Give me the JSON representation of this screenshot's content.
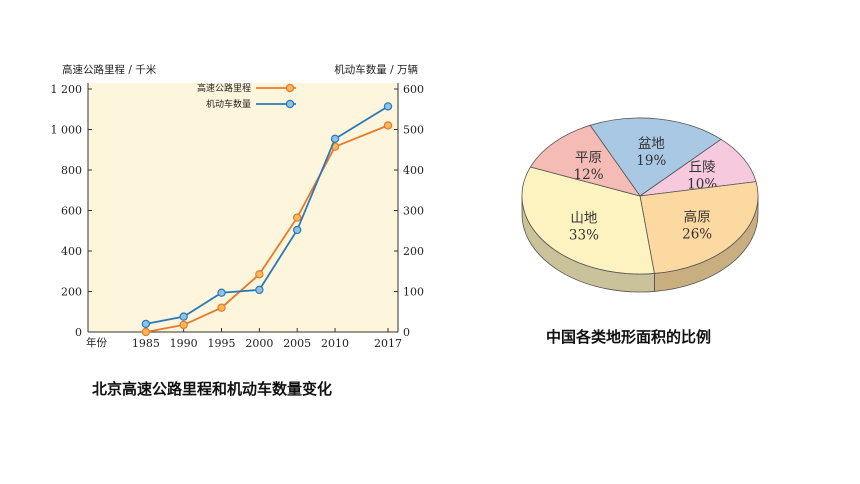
{
  "chart_data": [
    {
      "type": "line",
      "title": "北京高速公路里程和机动车数量变化",
      "xlabel": "年份",
      "ylabel_left": "高速公路里程 / 千米",
      "ylabel_right": "机动车数量 / 万辆",
      "x": [
        "1985",
        "1990",
        "1995",
        "2000",
        "2005",
        "2010",
        "2017"
      ],
      "ylim_left": [
        0,
        1200
      ],
      "yticks_left": [
        "0",
        "200",
        "400",
        "600",
        "800",
        "1 000",
        "1 200"
      ],
      "ylim_right": [
        0,
        600
      ],
      "yticks_right": [
        "0",
        "100",
        "200",
        "300",
        "400",
        "500",
        "600"
      ],
      "legend_position": "top-right",
      "background": "#fdf6dc",
      "series": [
        {
          "name": "高速公路里程",
          "axis": "left",
          "color": "#e8792b",
          "marker_color": "#f5b95a",
          "values": [
            0,
            35,
            120,
            285,
            565,
            915,
            1020
          ]
        },
        {
          "name": "机动车数量",
          "axis": "right",
          "color": "#2e78b7",
          "marker_color": "#8ec3e6",
          "values": [
            20,
            38,
            97,
            104,
            252,
            477,
            557
          ]
        }
      ]
    },
    {
      "type": "pie",
      "title": "中国各类地形面积的比例",
      "slices": [
        {
          "label": "盆地",
          "value": 19,
          "text": "19%",
          "color": "#a9c8e4"
        },
        {
          "label": "丘陵",
          "value": 10,
          "text": "10%",
          "color": "#f6c9de"
        },
        {
          "label": "高原",
          "value": 26,
          "text": "26%",
          "color": "#fbd9a0"
        },
        {
          "label": "山地",
          "value": 33,
          "text": "33%",
          "color": "#fdf3c0"
        },
        {
          "label": "平原",
          "value": 12,
          "text": "12%",
          "color": "#f5bcb5"
        }
      ]
    }
  ]
}
